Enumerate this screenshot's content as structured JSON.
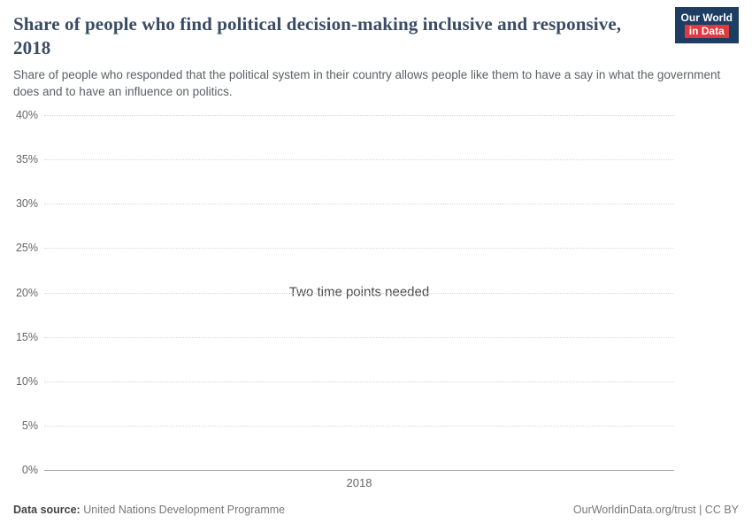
{
  "header": {
    "title": "Share of people who find political decision-making inclusive and responsive, 2018",
    "subtitle": "Share of people who responded that the political system in their country allows people like them to have a say in what the government does and to have an influence on politics.",
    "logo": {
      "line1": "Our World",
      "line2": "in Data"
    }
  },
  "chart_data": {
    "type": "line",
    "title": "Share of people who find political decision-making inclusive and responsive, 2018",
    "series": [],
    "annotation": "Two time points needed",
    "xlabel": "",
    "ylabel": "",
    "ylim": [
      0,
      40
    ],
    "yticks": [
      "0%",
      "5%",
      "10%",
      "15%",
      "20%",
      "25%",
      "30%",
      "35%",
      "40%"
    ],
    "xticks": [
      "2018"
    ],
    "grid": "horizontal-dotted",
    "legend": "none"
  },
  "footer": {
    "source_label": "Data source:",
    "source": "United Nations Development Programme",
    "credit": "OurWorldinData.org/trust | CC BY"
  },
  "colors": {
    "logo_blue": "#1d3d63",
    "logo_red": "#dc3b40",
    "title_text": "#3a4c63",
    "gridline": "#d8d8d8",
    "axis_line": "#a1a1a1"
  }
}
